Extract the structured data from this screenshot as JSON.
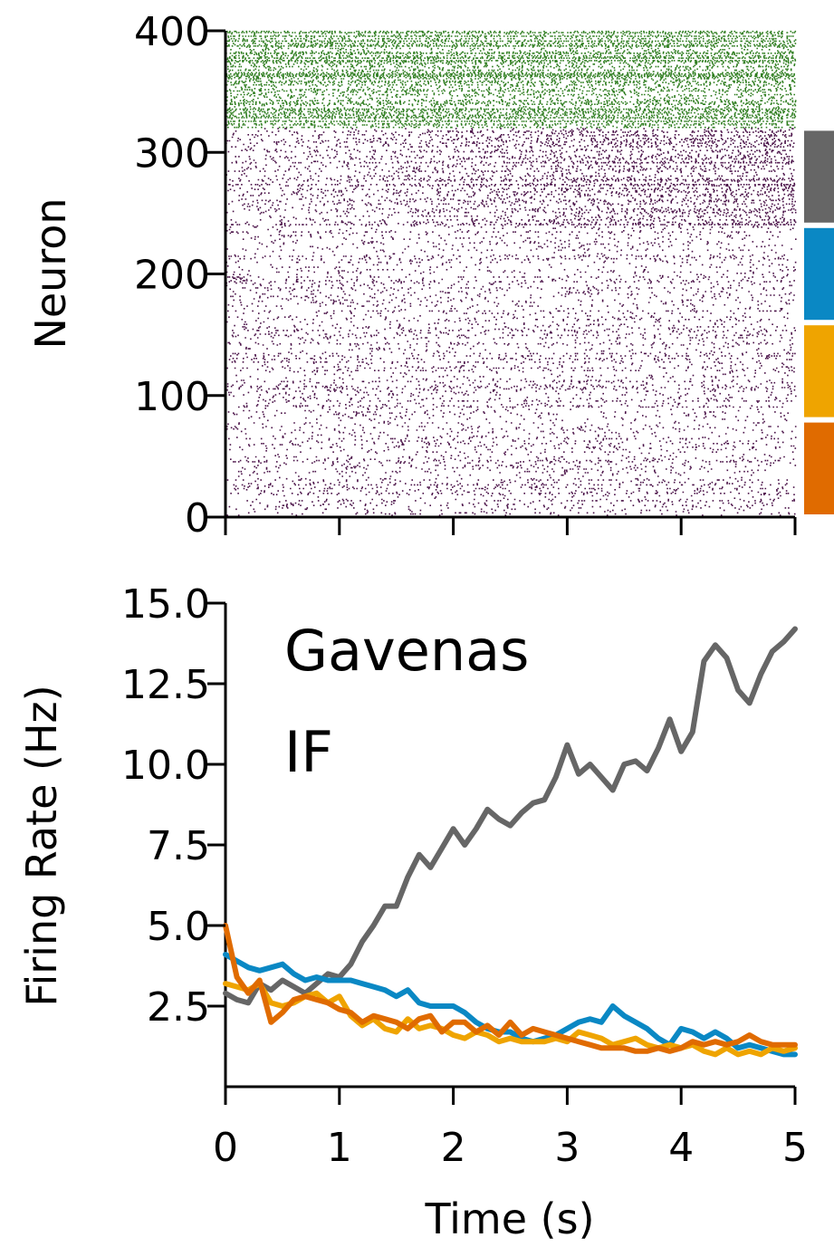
{
  "chart_data": [
    {
      "type": "scatter",
      "subtype": "raster",
      "ylabel": "Neuron",
      "xlabel": "",
      "xlim": [
        0,
        5
      ],
      "ylim": [
        0,
        400
      ],
      "xticks": [
        0,
        1,
        2,
        3,
        4,
        5
      ],
      "yticks": [
        {
          "value": 0,
          "label": "0"
        },
        {
          "value": 100,
          "label": "100"
        },
        {
          "value": 200,
          "label": "200"
        },
        {
          "value": 300,
          "label": "300"
        },
        {
          "value": 400,
          "label": "400"
        }
      ],
      "populations": [
        {
          "neuron_range": [
            320,
            400
          ],
          "color": "#2e7d1f"
        },
        {
          "neuron_range": [
            0,
            320
          ],
          "color": "#4a1248"
        }
      ],
      "group_bars": [
        {
          "neuron_range": [
            240,
            320
          ],
          "color": "#666666"
        },
        {
          "neuron_range": [
            160,
            240
          ],
          "color": "#0a88c4"
        },
        {
          "neuron_range": [
            80,
            160
          ],
          "color": "#efa400"
        },
        {
          "neuron_range": [
            0,
            80
          ],
          "color": "#e06b00"
        }
      ]
    },
    {
      "type": "line",
      "xlabel": "Time (s)",
      "ylabel": "Firing Rate (Hz)",
      "xlim": [
        0,
        5
      ],
      "ylim": [
        0,
        15
      ],
      "xticks": [
        {
          "value": 0,
          "label": "0"
        },
        {
          "value": 1,
          "label": "1"
        },
        {
          "value": 2,
          "label": "2"
        },
        {
          "value": 3,
          "label": "3"
        },
        {
          "value": 4,
          "label": "4"
        },
        {
          "value": 5,
          "label": "5"
        }
      ],
      "yticks": [
        {
          "value": 2.5,
          "label": "2.5"
        },
        {
          "value": 5.0,
          "label": "5.0"
        },
        {
          "value": 7.5,
          "label": "7.5"
        },
        {
          "value": 10.0,
          "label": "10.0"
        },
        {
          "value": 12.5,
          "label": "12.5"
        },
        {
          "value": 15.0,
          "label": "15.0"
        }
      ],
      "annotations": [
        "Gavenas",
        "IF"
      ],
      "x": [
        0,
        0.1,
        0.2,
        0.3,
        0.4,
        0.5,
        0.6,
        0.7,
        0.8,
        0.9,
        1.0,
        1.1,
        1.2,
        1.3,
        1.4,
        1.5,
        1.6,
        1.7,
        1.8,
        1.9,
        2.0,
        2.1,
        2.2,
        2.3,
        2.4,
        2.5,
        2.6,
        2.7,
        2.8,
        2.9,
        3.0,
        3.1,
        3.2,
        3.3,
        3.4,
        3.5,
        3.6,
        3.7,
        3.8,
        3.9,
        4.0,
        4.1,
        4.2,
        4.3,
        4.4,
        4.5,
        4.6,
        4.7,
        4.8,
        4.9,
        5.0
      ],
      "series": [
        {
          "color": "#666666",
          "values": [
            2.9,
            2.7,
            2.6,
            3.2,
            3.0,
            3.3,
            3.1,
            2.9,
            3.2,
            3.5,
            3.4,
            3.8,
            4.5,
            5.0,
            5.6,
            5.6,
            6.5,
            7.2,
            6.8,
            7.4,
            8.0,
            7.5,
            8.0,
            8.6,
            8.3,
            8.1,
            8.5,
            8.8,
            8.9,
            9.6,
            10.6,
            9.7,
            10.0,
            9.6,
            9.2,
            10.0,
            10.1,
            9.8,
            10.5,
            11.4,
            10.4,
            11.0,
            13.2,
            13.7,
            13.3,
            12.3,
            11.9,
            12.8,
            13.5,
            13.8,
            14.2
          ]
        },
        {
          "color": "#0a88c4",
          "values": [
            4.1,
            3.9,
            3.7,
            3.6,
            3.7,
            3.8,
            3.5,
            3.3,
            3.4,
            3.3,
            3.3,
            3.3,
            3.2,
            3.1,
            3.0,
            2.8,
            3.0,
            2.6,
            2.5,
            2.5,
            2.5,
            2.3,
            2.0,
            1.8,
            1.7,
            1.7,
            1.5,
            1.4,
            1.5,
            1.6,
            1.8,
            2.0,
            2.1,
            2.0,
            2.5,
            2.2,
            2.0,
            1.8,
            1.5,
            1.3,
            1.8,
            1.7,
            1.5,
            1.7,
            1.5,
            1.2,
            1.3,
            1.2,
            1.1,
            1.0,
            1.0
          ]
        },
        {
          "color": "#efa400",
          "values": [
            3.2,
            3.1,
            3.0,
            3.2,
            2.6,
            2.5,
            2.6,
            2.8,
            2.9,
            2.6,
            2.8,
            2.2,
            1.9,
            2.1,
            1.8,
            1.7,
            2.1,
            1.8,
            1.9,
            1.8,
            1.6,
            1.5,
            1.7,
            1.6,
            1.4,
            1.5,
            1.4,
            1.4,
            1.4,
            1.5,
            1.4,
            1.7,
            1.6,
            1.5,
            1.3,
            1.4,
            1.5,
            1.3,
            1.2,
            1.3,
            1.2,
            1.3,
            1.1,
            1.0,
            1.2,
            1.0,
            1.1,
            1.0,
            1.2,
            1.1,
            1.2
          ]
        },
        {
          "color": "#e06b00",
          "values": [
            5.0,
            3.4,
            2.9,
            3.3,
            2.0,
            2.3,
            2.7,
            2.8,
            2.7,
            2.6,
            2.4,
            2.3,
            2.0,
            2.2,
            2.1,
            2.0,
            1.8,
            2.1,
            2.2,
            1.7,
            2.0,
            2.0,
            1.7,
            1.9,
            1.6,
            2.0,
            1.6,
            1.8,
            1.7,
            1.6,
            1.5,
            1.4,
            1.3,
            1.2,
            1.2,
            1.2,
            1.1,
            1.1,
            1.2,
            1.1,
            1.2,
            1.4,
            1.3,
            1.4,
            1.3,
            1.4,
            1.6,
            1.4,
            1.3,
            1.3,
            1.3
          ]
        }
      ]
    }
  ]
}
